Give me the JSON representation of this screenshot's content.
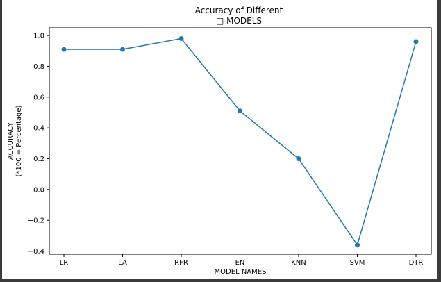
{
  "chart_data": {
    "type": "line",
    "title": "Accuracy of Different",
    "subtitle": "□ MODELS",
    "xlabel": "MODEL NAMES",
    "ylabel": "ACCURACY",
    "ylabel2": "(*100 = Percentage)",
    "categories": [
      "LR",
      "LA",
      "RFR",
      "EN",
      "KNN",
      "SVM",
      "DTR"
    ],
    "values": [
      0.91,
      0.91,
      0.98,
      0.51,
      0.2,
      -0.36,
      0.96
    ],
    "ylim": [
      -0.42,
      1.05
    ],
    "yticks": [
      -0.4,
      -0.2,
      0.0,
      0.2,
      0.4,
      0.6,
      0.8,
      1.0
    ],
    "ytick_labels": [
      "−0.4",
      "−0.2",
      "0.0",
      "0.2",
      "0.4",
      "0.6",
      "0.8",
      "1.0"
    ],
    "line_color": "#1f77b4",
    "grid": false,
    "marker": "circle"
  }
}
